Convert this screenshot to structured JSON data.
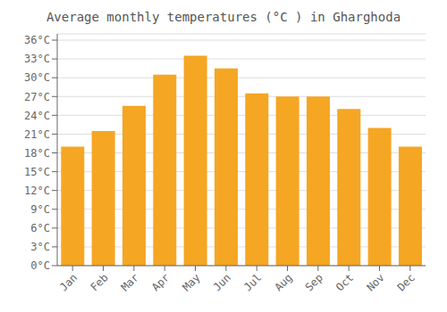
{
  "chart_data": {
    "type": "bar",
    "title": "Average monthly temperatures (°C ) in Gharghoda",
    "categories": [
      "Jan",
      "Feb",
      "Mar",
      "Apr",
      "May",
      "Jun",
      "Jul",
      "Aug",
      "Sep",
      "Oct",
      "Nov",
      "Dec"
    ],
    "values": [
      19,
      21.5,
      25.5,
      30.5,
      33.5,
      31.5,
      27.5,
      27,
      27,
      25,
      22,
      19
    ],
    "color": "#F5A623",
    "ylim": [
      0,
      37
    ],
    "yticks": [
      {
        "value": 0,
        "label": "0°C"
      },
      {
        "value": 3,
        "label": "3°C"
      },
      {
        "value": 6,
        "label": "6°C"
      },
      {
        "value": 9,
        "label": "9°C"
      },
      {
        "value": 12,
        "label": "12°C"
      },
      {
        "value": 15,
        "label": "15°C"
      },
      {
        "value": 18,
        "label": "18°C"
      },
      {
        "value": 21,
        "label": "21°C"
      },
      {
        "value": 24,
        "label": "24°C"
      },
      {
        "value": 27,
        "label": "27°C"
      },
      {
        "value": 30,
        "label": "30°C"
      },
      {
        "value": 33,
        "label": "33°C"
      },
      {
        "value": 36,
        "label": "36°C"
      }
    ],
    "grid": true
  }
}
